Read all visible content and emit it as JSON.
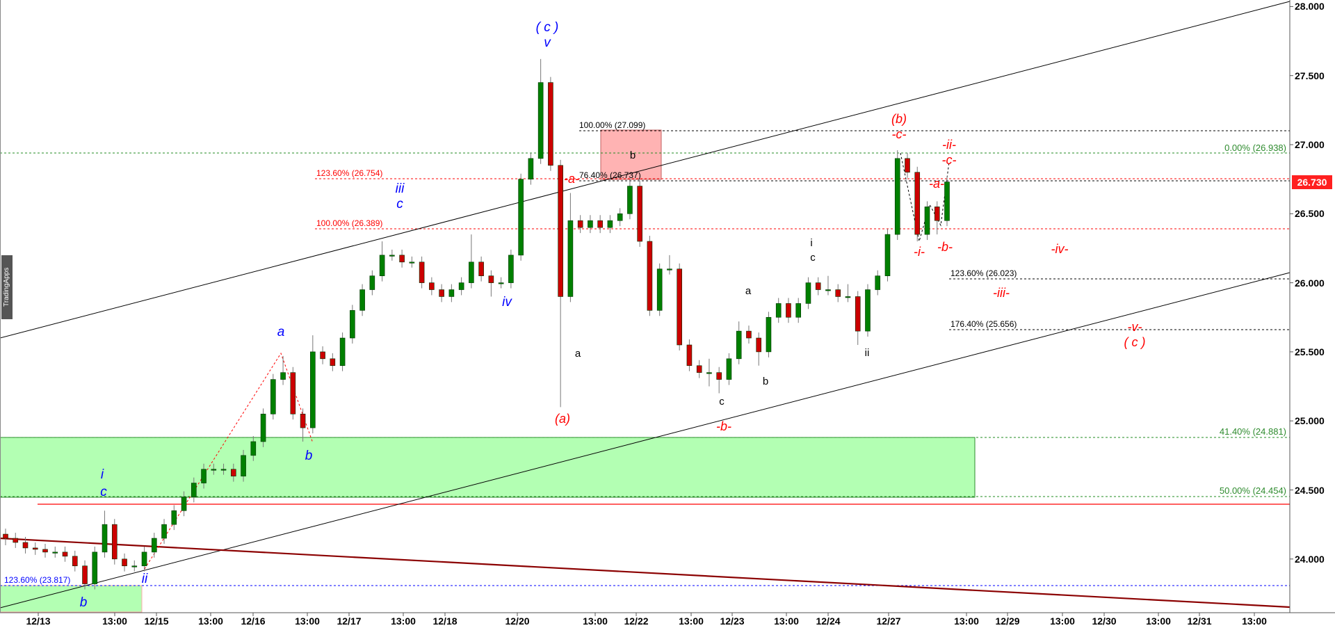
{
  "chart_data": {
    "type": "candlestick",
    "ylim": [
      23.6,
      28.05
    ],
    "y_ticks": [
      "28.000",
      "27.500",
      "27.000",
      "26.500",
      "26.000",
      "25.500",
      "25.000",
      "24.500",
      "24.000"
    ],
    "x_ticks": [
      "12/13",
      "13:00",
      "12/15",
      "13:00",
      "12/16",
      "13:00",
      "12/17",
      "13:00",
      "12/18",
      "12/20",
      "13:00",
      "12/22",
      "13:00",
      "12/23",
      "13:00",
      "12/24",
      "12/27",
      "13:00",
      "12/29",
      "13:00",
      "12/30",
      "13:00",
      "12/31",
      "13:00"
    ],
    "last_price": "26.730",
    "candles_ohlc": [
      [
        24.18,
        24.22,
        24.1,
        24.15
      ],
      [
        24.15,
        24.19,
        24.08,
        24.12
      ],
      [
        24.12,
        24.16,
        24.04,
        24.08
      ],
      [
        24.08,
        24.12,
        24.03,
        24.07
      ],
      [
        24.07,
        24.11,
        24.01,
        24.05
      ],
      [
        24.05,
        24.09,
        24.01,
        24.05
      ],
      [
        24.05,
        24.09,
        23.98,
        24.02
      ],
      [
        24.02,
        24.06,
        23.91,
        23.95
      ],
      [
        23.95,
        23.99,
        23.78,
        23.82
      ],
      [
        23.82,
        24.09,
        23.78,
        24.05
      ],
      [
        24.05,
        24.35,
        24.01,
        24.25
      ],
      [
        24.25,
        24.29,
        23.96,
        24.0
      ],
      [
        24.0,
        24.04,
        23.91,
        23.95
      ],
      [
        23.95,
        23.99,
        23.91,
        23.95
      ],
      [
        23.95,
        24.09,
        23.91,
        24.05
      ],
      [
        24.05,
        24.19,
        24.01,
        24.15
      ],
      [
        24.15,
        24.29,
        24.11,
        24.25
      ],
      [
        24.25,
        24.39,
        24.21,
        24.35
      ],
      [
        24.35,
        24.49,
        24.31,
        24.45
      ],
      [
        24.45,
        24.59,
        24.41,
        24.55
      ],
      [
        24.55,
        24.69,
        24.51,
        24.65
      ],
      [
        24.65,
        24.69,
        24.61,
        24.65
      ],
      [
        24.65,
        24.69,
        24.61,
        24.65
      ],
      [
        24.65,
        24.69,
        24.56,
        24.6
      ],
      [
        24.6,
        24.79,
        24.56,
        24.75
      ],
      [
        24.75,
        24.89,
        24.71,
        24.85
      ],
      [
        24.85,
        25.09,
        24.81,
        25.05
      ],
      [
        25.05,
        25.34,
        25.01,
        25.3
      ],
      [
        25.3,
        25.47,
        25.26,
        25.35
      ],
      [
        25.35,
        25.39,
        25.01,
        25.05
      ],
      [
        25.05,
        25.09,
        24.85,
        24.95
      ],
      [
        24.95,
        25.62,
        24.91,
        25.5
      ],
      [
        25.5,
        25.54,
        25.41,
        25.45
      ],
      [
        25.45,
        25.49,
        25.36,
        25.4
      ],
      [
        25.4,
        25.64,
        25.36,
        25.6
      ],
      [
        25.6,
        25.84,
        25.56,
        25.8
      ],
      [
        25.8,
        25.99,
        25.76,
        25.95
      ],
      [
        25.95,
        26.09,
        25.91,
        26.05
      ],
      [
        26.05,
        26.3,
        26.01,
        26.2
      ],
      [
        26.2,
        26.24,
        26.16,
        26.2
      ],
      [
        26.2,
        26.24,
        26.11,
        26.15
      ],
      [
        26.15,
        26.19,
        26.11,
        26.15
      ],
      [
        26.15,
        26.19,
        25.96,
        26.0
      ],
      [
        26.0,
        26.04,
        25.91,
        25.95
      ],
      [
        25.95,
        25.99,
        25.86,
        25.9
      ],
      [
        25.9,
        25.99,
        25.86,
        25.95
      ],
      [
        25.95,
        26.04,
        25.91,
        26.0
      ],
      [
        26.0,
        26.35,
        25.96,
        26.15
      ],
      [
        26.15,
        26.19,
        26.01,
        26.05
      ],
      [
        26.05,
        26.09,
        25.9,
        26.0
      ],
      [
        26.0,
        26.04,
        25.96,
        26.0
      ],
      [
        26.0,
        26.24,
        25.96,
        26.2
      ],
      [
        26.2,
        26.79,
        26.16,
        26.75
      ],
      [
        26.75,
        26.94,
        26.71,
        26.9
      ],
      [
        26.9,
        27.62,
        26.86,
        27.45
      ],
      [
        27.45,
        27.49,
        26.81,
        26.85
      ],
      [
        26.85,
        26.89,
        25.1,
        25.9
      ],
      [
        25.9,
        26.65,
        25.86,
        26.45
      ],
      [
        26.45,
        26.49,
        26.36,
        26.4
      ],
      [
        26.4,
        26.49,
        26.36,
        26.45
      ],
      [
        26.45,
        26.49,
        26.36,
        26.4
      ],
      [
        26.4,
        26.49,
        26.36,
        26.45
      ],
      [
        26.45,
        26.54,
        26.41,
        26.5
      ],
      [
        26.5,
        26.75,
        26.46,
        26.7
      ],
      [
        26.7,
        26.74,
        26.26,
        26.3
      ],
      [
        26.3,
        26.34,
        25.76,
        25.8
      ],
      [
        25.8,
        26.14,
        25.76,
        26.1
      ],
      [
        26.1,
        26.2,
        26.06,
        26.1
      ],
      [
        26.1,
        26.14,
        25.51,
        25.55
      ],
      [
        25.55,
        25.59,
        25.36,
        25.4
      ],
      [
        25.4,
        25.44,
        25.31,
        25.35
      ],
      [
        25.35,
        25.45,
        25.25,
        25.35
      ],
      [
        25.35,
        25.39,
        25.2,
        25.3
      ],
      [
        25.3,
        25.49,
        25.26,
        25.45
      ],
      [
        25.45,
        25.72,
        25.41,
        25.65
      ],
      [
        25.65,
        25.69,
        25.56,
        25.6
      ],
      [
        25.6,
        25.64,
        25.4,
        25.5
      ],
      [
        25.5,
        25.79,
        25.46,
        25.75
      ],
      [
        25.75,
        25.89,
        25.71,
        25.85
      ],
      [
        25.85,
        25.89,
        25.71,
        25.75
      ],
      [
        25.75,
        25.89,
        25.71,
        25.85
      ],
      [
        25.85,
        26.04,
        25.81,
        26.0
      ],
      [
        26.0,
        26.04,
        25.91,
        25.95
      ],
      [
        25.95,
        26.05,
        25.91,
        25.95
      ],
      [
        25.95,
        25.99,
        25.86,
        25.9
      ],
      [
        25.9,
        25.99,
        25.86,
        25.9
      ],
      [
        25.9,
        25.94,
        25.55,
        25.65
      ],
      [
        25.65,
        25.99,
        25.61,
        25.95
      ],
      [
        25.95,
        26.09,
        25.91,
        26.05
      ],
      [
        26.05,
        26.39,
        26.01,
        26.35
      ],
      [
        26.35,
        26.96,
        26.31,
        26.9
      ],
      [
        26.9,
        26.94,
        26.76,
        26.8
      ],
      [
        26.8,
        26.84,
        26.3,
        26.35
      ],
      [
        26.35,
        26.59,
        26.31,
        26.55
      ],
      [
        26.55,
        26.59,
        26.35,
        26.45
      ],
      [
        26.45,
        26.77,
        26.41,
        26.73
      ]
    ],
    "fib_levels": {
      "green_0": "0.00% (26.938)",
      "green_414": "41.40% (24.881)",
      "green_50": "50.00% (24.454)",
      "red_1236": "123.60% (26.754)",
      "red_100": "100.00% (26.389)",
      "black_100": "100.00% (27.099)",
      "black_764": "76.40% (26.737)",
      "black_1236": "123.60% (26.023)",
      "black_1764": "176.40% (25.656)",
      "blue_1236": "123.60% (23.817)"
    },
    "wave_labels": {
      "blue": [
        "( c )",
        "v",
        "iii",
        "c",
        "iv",
        "a",
        "b",
        "i",
        "c",
        "ii",
        "b"
      ],
      "black": [
        "b",
        "a",
        "a",
        "b",
        "c",
        "i",
        "c",
        "ii"
      ],
      "red": [
        "(a)",
        "-b-",
        "(b)",
        "-c-",
        "-ii-",
        "-c-",
        "-a-",
        "-a-",
        "-i-",
        "-b-",
        "-iv-",
        "-iii-",
        "-v-",
        "( c )"
      ]
    },
    "colors": {
      "up": "#008000",
      "down": "#cc0000",
      "zone": "#b3ffb3",
      "pink_zone": "#ffb3b3",
      "price_tag": "#ff2020"
    }
  },
  "watermark": "TradingApps"
}
